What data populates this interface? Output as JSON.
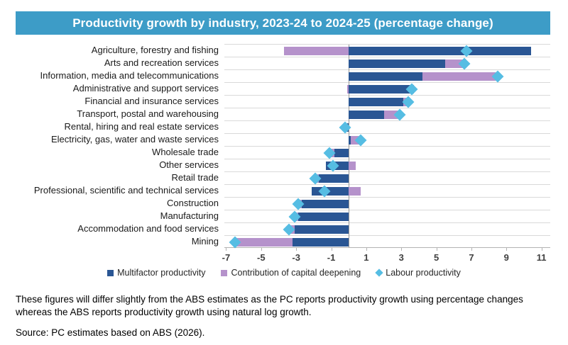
{
  "title": "Productivity growth by industry, 2023-24 to 2024-25 (percentage change)",
  "colors": {
    "banner_bg": "#3d9cc7",
    "banner_text": "#ffffff",
    "mfp_bar": "#2a5694",
    "capital_bar": "#b592cb",
    "labour_marker": "#56bde3",
    "gridline": "#d9d9d9",
    "axis_line": "#b3b3b3",
    "zero_line": "#999999",
    "tick_label": "#404040",
    "label_text": "#1a1a1a"
  },
  "chart_data": {
    "type": "bar",
    "orientation": "horizontal",
    "stacked": true,
    "title": "Productivity growth by industry, 2023-24 to 2024-25 (percentage change)",
    "xlabel": "",
    "ylabel": "",
    "xlim": [
      -7.1,
      11.5
    ],
    "x_ticks": [
      -7,
      -5,
      -3,
      -1,
      1,
      3,
      5,
      7,
      9,
      11
    ],
    "grid": "horizontal",
    "legend_position": "bottom",
    "categories": [
      "Agriculture, forestry and fishing",
      "Arts and recreation services",
      "Information, media and telecommunications",
      "Administrative and support services",
      "Financial and insurance services",
      "Transport, postal and warehousing",
      "Rental, hiring and real estate services",
      "Electricity, gas, water and waste services",
      "Wholesale trade",
      "Other services",
      "Retail trade",
      "Professional, scientific and technical services",
      "Construction",
      "Manufacturing",
      "Accommodation and food services",
      "Mining"
    ],
    "series": [
      {
        "name": "Multifactor productivity",
        "style": "bar",
        "values": [
          10.4,
          5.5,
          4.2,
          3.7,
          3.1,
          2.0,
          -0.1,
          0.1,
          -0.8,
          -1.3,
          -1.7,
          -2.1,
          -2.7,
          -2.9,
          -3.1,
          -3.2
        ]
      },
      {
        "name": "Contribution of capital deepening",
        "style": "bar",
        "values": [
          -3.7,
          1.1,
          4.2,
          -0.1,
          0.3,
          0.8,
          -0.1,
          0.5,
          -0.3,
          0.4,
          -0.2,
          0.7,
          -0.2,
          -0.2,
          -0.3,
          -3.2
        ]
      },
      {
        "name": "Labour productivity",
        "style": "diamond-marker",
        "values": [
          6.7,
          6.6,
          8.5,
          3.6,
          3.4,
          2.9,
          -0.2,
          0.7,
          -1.1,
          -0.9,
          -1.9,
          -1.4,
          -2.9,
          -3.1,
          -3.4,
          -6.5
        ]
      }
    ]
  },
  "legend": [
    {
      "label": "Multifactor productivity",
      "swatch": "square",
      "color_key": "mfp_bar"
    },
    {
      "label": "Contribution of capital deepening",
      "swatch": "square",
      "color_key": "capital_bar"
    },
    {
      "label": "Labour productivity",
      "swatch": "diamond",
      "color_key": "labour_marker"
    }
  ],
  "notes": {
    "body": "These figures will differ slightly from the ABS estimates as the PC reports productivity growth using percentage changes whereas the ABS reports productivity growth using natural log growth.",
    "source": "Source: PC estimates based on ABS (2026)."
  }
}
